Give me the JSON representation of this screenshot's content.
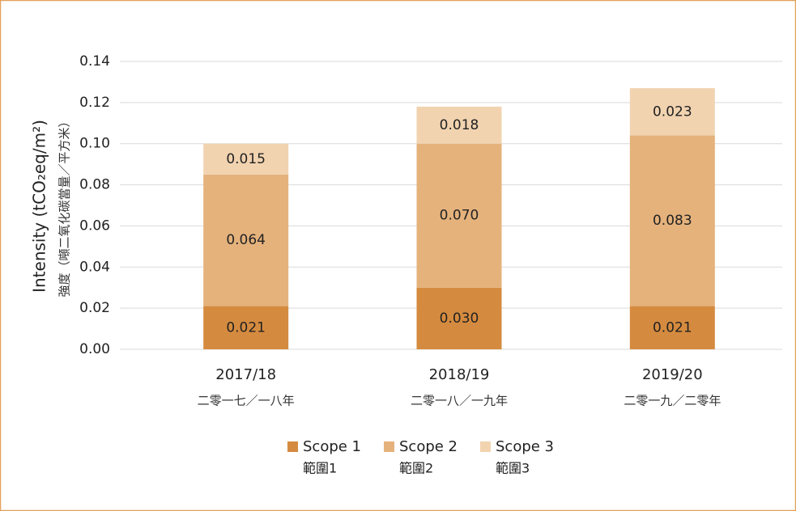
{
  "chart_data": {
    "type": "stacked_bar",
    "y_label": "Intensity (tCO₂eq/m²)",
    "y_label_zh": "強度（噸二氧化碳當量／平方米）",
    "categories": [
      "2017/18",
      "2018/19",
      "2019/20"
    ],
    "categories_zh": [
      "二零一七／一八年",
      "二零一八／一九年",
      "二零一九／二零年"
    ],
    "series": [
      {
        "name": "Scope 1",
        "name_zh": "範圍1",
        "color": "#d58b3f",
        "values": [
          0.021,
          0.03,
          0.021
        ],
        "value_labels": [
          "0.021",
          "0.030",
          "0.021"
        ]
      },
      {
        "name": "Scope 2",
        "name_zh": "範圍2",
        "color": "#e5b27c",
        "values": [
          0.064,
          0.07,
          0.083
        ],
        "value_labels": [
          "0.064",
          "0.070",
          "0.083"
        ]
      },
      {
        "name": "Scope 3",
        "name_zh": "範圍3",
        "color": "#f2d3b0",
        "values": [
          0.015,
          0.018,
          0.023
        ],
        "value_labels": [
          "0.015",
          "0.018",
          "0.023"
        ]
      }
    ],
    "ylim": [
      0,
      0.14
    ],
    "yticks": [
      {
        "value": 0,
        "label": "0.00"
      },
      {
        "value": 0.02,
        "label": "0.02"
      },
      {
        "value": 0.04,
        "label": "0.04"
      },
      {
        "value": 0.06,
        "label": "0.06"
      },
      {
        "value": 0.08,
        "label": "0.08"
      },
      {
        "value": 0.1,
        "label": "0.10"
      },
      {
        "value": 0.12,
        "label": "0.12"
      },
      {
        "value": 0.14,
        "label": "0.14"
      }
    ],
    "grid": true,
    "legend": "bottom"
  }
}
